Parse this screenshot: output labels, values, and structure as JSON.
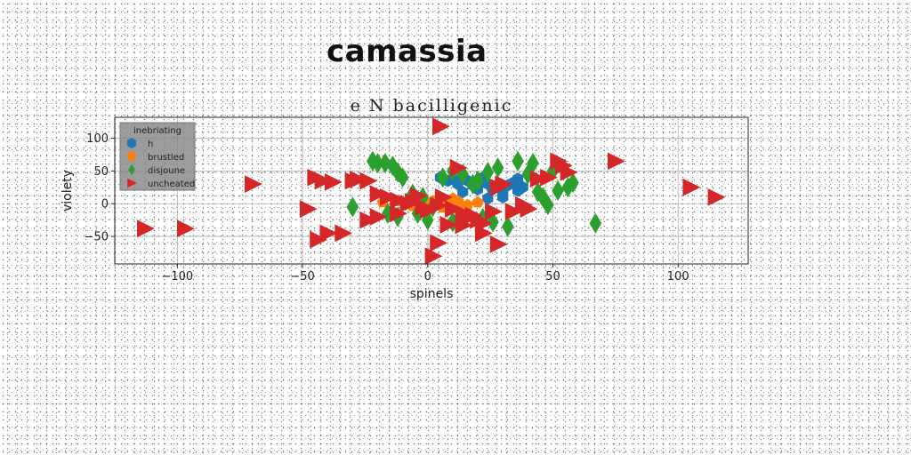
{
  "page": {
    "title": "camassia"
  },
  "chart_data": {
    "type": "scatter",
    "title": "e N bacilligenic",
    "xlabel": "spinels",
    "ylabel": "violety",
    "xlim": [
      -125,
      128
    ],
    "ylim": [
      -92,
      132
    ],
    "xticks": [
      -100,
      -50,
      0,
      50,
      100
    ],
    "yticks": [
      -50,
      0,
      50,
      100
    ],
    "xtick_labels": [
      "−100",
      "−50",
      "0",
      "50",
      "100"
    ],
    "ytick_labels": [
      "−50",
      "0",
      "50",
      "100"
    ],
    "grid": true,
    "legend": {
      "title": "inebriating",
      "placement": "top-left"
    },
    "series": [
      {
        "name": "h",
        "marker": "hexagon",
        "color": "#1f77b4",
        "points": [
          [
            5,
            40
          ],
          [
            8,
            35
          ],
          [
            10,
            38
          ],
          [
            12,
            30
          ],
          [
            14,
            42
          ],
          [
            16,
            35
          ],
          [
            18,
            28
          ],
          [
            20,
            33
          ],
          [
            22,
            40
          ],
          [
            24,
            30
          ],
          [
            26,
            22
          ],
          [
            28,
            25
          ],
          [
            30,
            18
          ],
          [
            32,
            28
          ],
          [
            34,
            32
          ],
          [
            36,
            20
          ],
          [
            36,
            38
          ],
          [
            38,
            25
          ],
          [
            24,
            8
          ],
          [
            30,
            10
          ],
          [
            14,
            18
          ],
          [
            20,
            22
          ]
        ]
      },
      {
        "name": "brustled",
        "marker": "pentagon",
        "color": "#ff7f0e",
        "points": [
          [
            -18,
            2
          ],
          [
            -12,
            4
          ],
          [
            -8,
            0
          ],
          [
            -4,
            6
          ],
          [
            0,
            -2
          ],
          [
            4,
            2
          ],
          [
            8,
            0
          ],
          [
            12,
            4
          ],
          [
            16,
            -2
          ],
          [
            20,
            2
          ],
          [
            6,
            -6
          ],
          [
            -2,
            8
          ],
          [
            10,
            8
          ],
          [
            14,
            -4
          ],
          [
            2,
            4
          ],
          [
            -6,
            -4
          ]
        ]
      },
      {
        "name": "disjoune",
        "marker": "diamond",
        "color": "#2ca02c",
        "points": [
          [
            -22,
            65
          ],
          [
            -20,
            62
          ],
          [
            -17,
            62
          ],
          [
            -14,
            58
          ],
          [
            -12,
            48
          ],
          [
            -10,
            40
          ],
          [
            -16,
            -15
          ],
          [
            -12,
            -20
          ],
          [
            -6,
            15
          ],
          [
            -2,
            10
          ],
          [
            2,
            -5
          ],
          [
            6,
            40
          ],
          [
            10,
            50
          ],
          [
            14,
            45
          ],
          [
            18,
            30
          ],
          [
            20,
            35
          ],
          [
            24,
            48
          ],
          [
            28,
            55
          ],
          [
            36,
            65
          ],
          [
            40,
            45
          ],
          [
            42,
            62
          ],
          [
            44,
            18
          ],
          [
            46,
            10
          ],
          [
            48,
            -2
          ],
          [
            50,
            50
          ],
          [
            52,
            20
          ],
          [
            56,
            25
          ],
          [
            58,
            32
          ],
          [
            67,
            -30
          ],
          [
            -30,
            -5
          ],
          [
            -4,
            -15
          ],
          [
            0,
            -25
          ],
          [
            10,
            -28
          ],
          [
            22,
            -22
          ],
          [
            26,
            -28
          ],
          [
            32,
            -35
          ]
        ]
      },
      {
        "name": "uncheated",
        "marker": "triangle-right",
        "color": "#d62728",
        "points": [
          [
            5,
            118
          ],
          [
            -113,
            -38
          ],
          [
            -97,
            -38
          ],
          [
            -70,
            30
          ],
          [
            -45,
            40
          ],
          [
            -42,
            35
          ],
          [
            -38,
            33
          ],
          [
            -30,
            35
          ],
          [
            -28,
            37
          ],
          [
            -24,
            35
          ],
          [
            -20,
            15
          ],
          [
            -16,
            10
          ],
          [
            -12,
            5
          ],
          [
            -8,
            0
          ],
          [
            -4,
            12
          ],
          [
            -2,
            -5
          ],
          [
            0,
            -10
          ],
          [
            4,
            -3
          ],
          [
            6,
            10
          ],
          [
            10,
            -8
          ],
          [
            14,
            -15
          ],
          [
            16,
            -20
          ],
          [
            18,
            -18
          ],
          [
            20,
            -25
          ],
          [
            22,
            -30
          ],
          [
            26,
            -12
          ],
          [
            28,
            25
          ],
          [
            30,
            30
          ],
          [
            34,
            -12
          ],
          [
            38,
            -2
          ],
          [
            40,
            -8
          ],
          [
            44,
            38
          ],
          [
            48,
            40
          ],
          [
            52,
            65
          ],
          [
            54,
            58
          ],
          [
            56,
            48
          ],
          [
            75,
            65
          ],
          [
            105,
            25
          ],
          [
            115,
            10
          ],
          [
            -48,
            -8
          ],
          [
            -44,
            -55
          ],
          [
            -40,
            -45
          ],
          [
            -34,
            -45
          ],
          [
            -24,
            -25
          ],
          [
            -20,
            -20
          ],
          [
            -12,
            -15
          ],
          [
            2,
            -80
          ],
          [
            4,
            -60
          ],
          [
            8,
            -32
          ],
          [
            12,
            55
          ],
          [
            14,
            -33
          ],
          [
            22,
            -45
          ],
          [
            28,
            -62
          ],
          [
            -6,
            3
          ]
        ]
      }
    ]
  }
}
